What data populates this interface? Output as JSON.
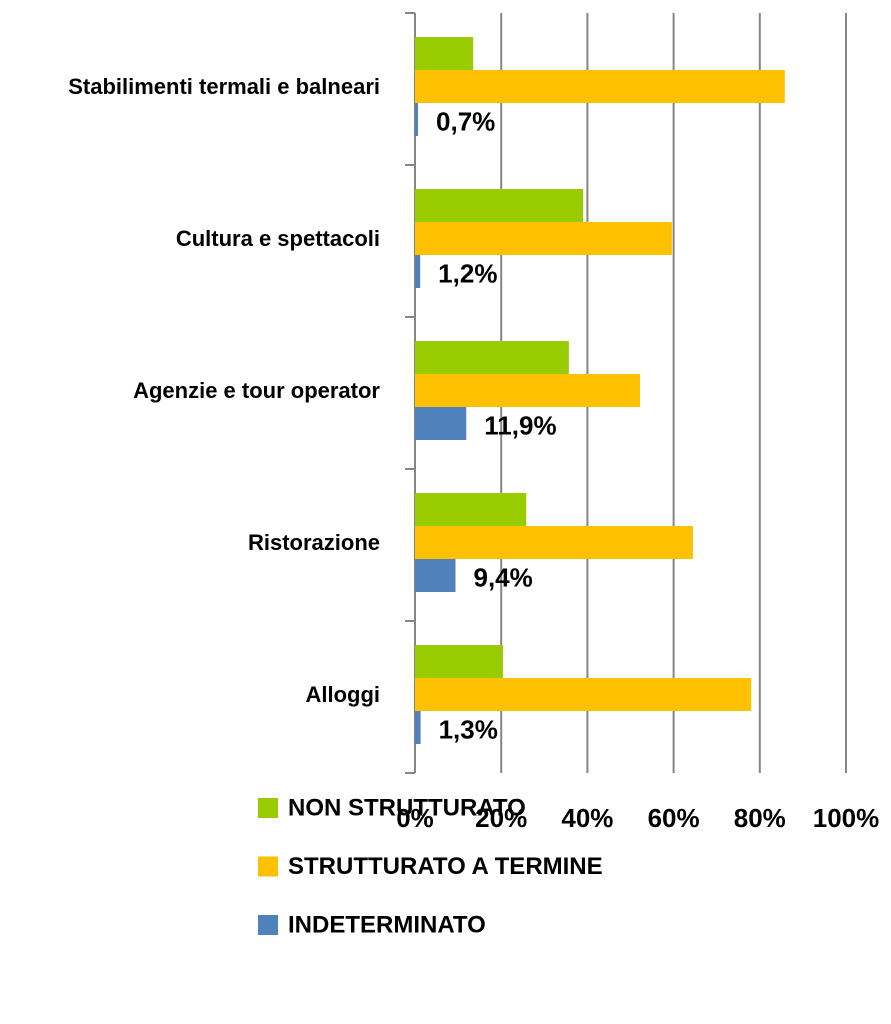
{
  "chart_data": {
    "type": "hbar",
    "categories": [
      "Stabilimenti termali e balneari",
      "Cultura e spettacoli",
      "Agenzie e tour operator",
      "Ristorazione",
      "Alloggi"
    ],
    "series": [
      {
        "name": "NON STRUTTURATO",
        "color": "#99cc00",
        "values": [
          13.5,
          39,
          35.7,
          25.8,
          20.4
        ]
      },
      {
        "name": "STRUTTURATO A TERMINE",
        "color": "#ffc000",
        "values": [
          85.8,
          59.6,
          52.2,
          64.5,
          78
        ]
      },
      {
        "name": "INDETERMINATO",
        "color": "#4f81bd",
        "values": [
          0.7,
          1.2,
          11.9,
          9.4,
          1.3
        ],
        "value_labels": [
          "0,7%",
          "1,2%",
          "11,9%",
          "9,4%",
          "1,3%"
        ]
      }
    ],
    "xlim": [
      0,
      100
    ],
    "xticks": [
      {
        "value": 0,
        "label": "0%"
      },
      {
        "value": 20,
        "label": "20%"
      },
      {
        "value": 40,
        "label": "40%"
      },
      {
        "value": 60,
        "label": "60%"
      },
      {
        "value": 80,
        "label": "80%"
      },
      {
        "value": 100,
        "label": "100%"
      }
    ],
    "grid": true,
    "legend": "bottom"
  }
}
